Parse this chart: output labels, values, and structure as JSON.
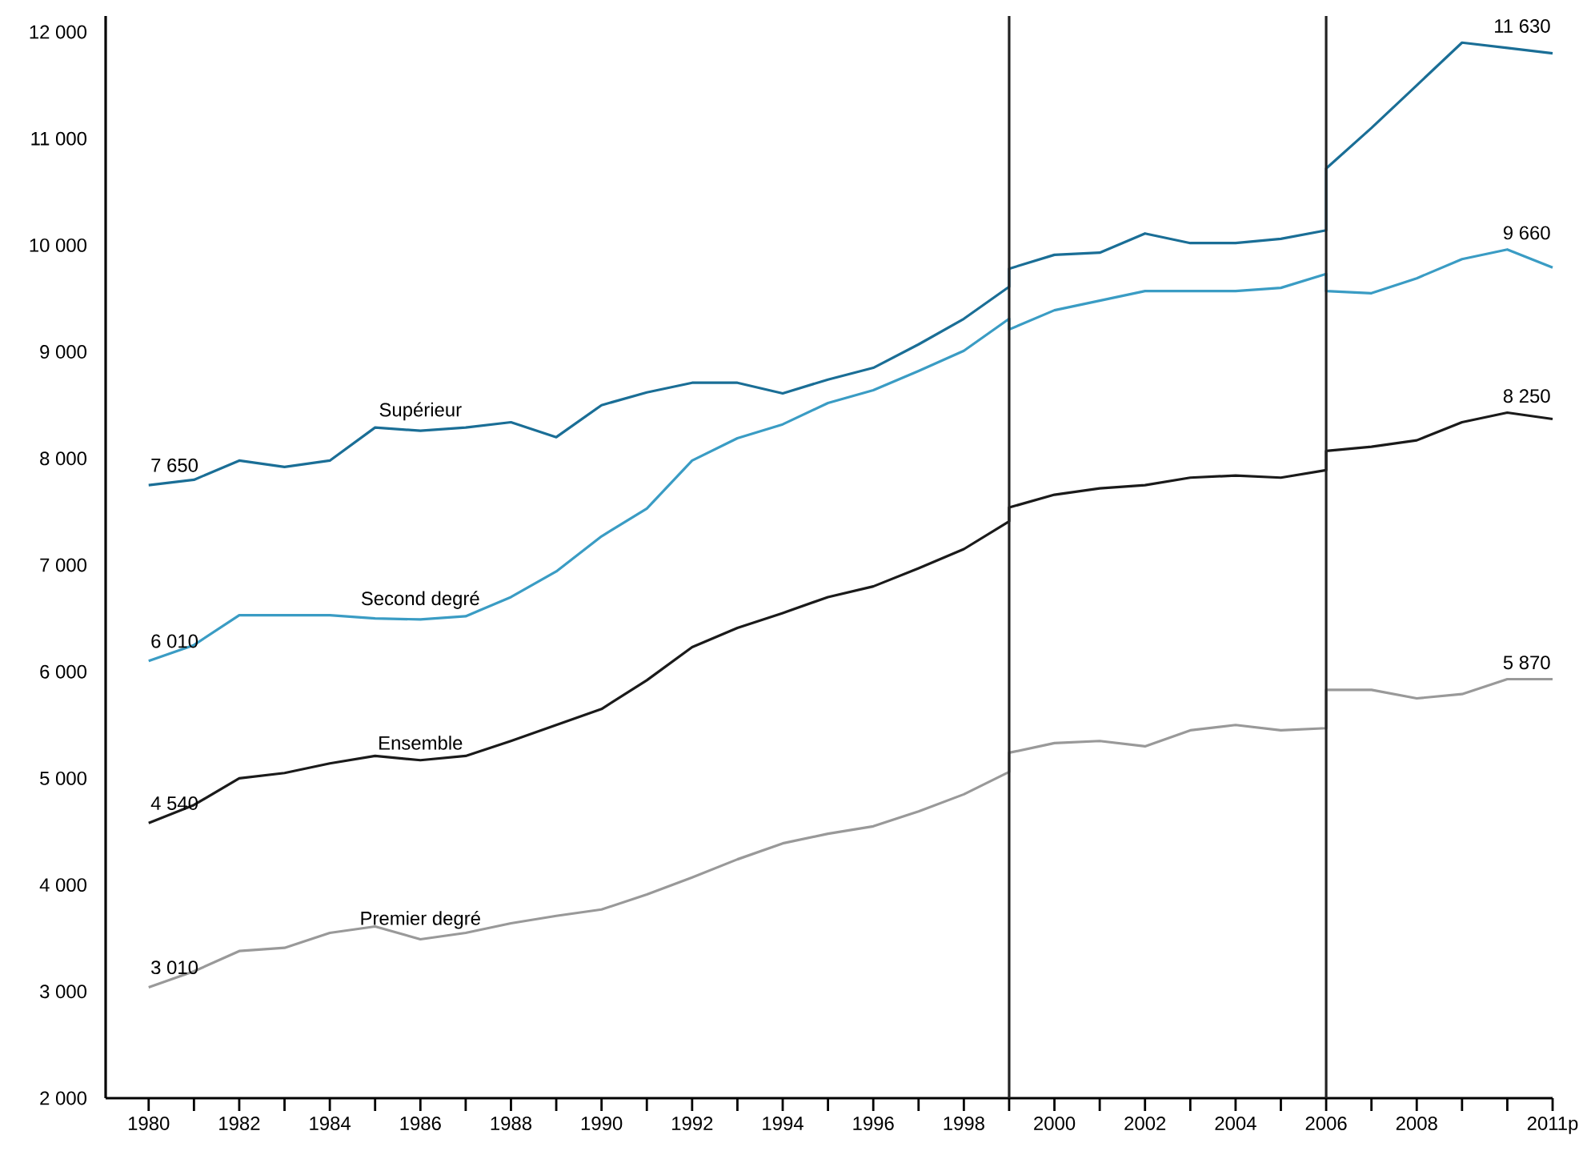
{
  "chart_data": {
    "type": "line",
    "xlim": [
      1979.05,
      2011
    ],
    "ylim": [
      2000,
      12150
    ],
    "xticks": [
      {
        "value": 1980,
        "label": "1980"
      },
      {
        "value": 1981,
        "label": null
      },
      {
        "value": 1982,
        "label": "1982"
      },
      {
        "value": 1983,
        "label": null
      },
      {
        "value": 1984,
        "label": "1984"
      },
      {
        "value": 1985,
        "label": null
      },
      {
        "value": 1986,
        "label": "1986"
      },
      {
        "value": 1987,
        "label": null
      },
      {
        "value": 1988,
        "label": "1988"
      },
      {
        "value": 1989,
        "label": null
      },
      {
        "value": 1990,
        "label": "1990"
      },
      {
        "value": 1991,
        "label": null
      },
      {
        "value": 1992,
        "label": "1992"
      },
      {
        "value": 1993,
        "label": null
      },
      {
        "value": 1994,
        "label": "1994"
      },
      {
        "value": 1995,
        "label": null
      },
      {
        "value": 1996,
        "label": "1996"
      },
      {
        "value": 1997,
        "label": null
      },
      {
        "value": 1998,
        "label": "1998"
      },
      {
        "value": 1999,
        "label": null
      },
      {
        "value": 2000,
        "label": "2000"
      },
      {
        "value": 2001,
        "label": null
      },
      {
        "value": 2002,
        "label": "2002"
      },
      {
        "value": 2003,
        "label": null
      },
      {
        "value": 2004,
        "label": "2004"
      },
      {
        "value": 2005,
        "label": null
      },
      {
        "value": 2006,
        "label": "2006"
      },
      {
        "value": 2007,
        "label": null
      },
      {
        "value": 2008,
        "label": "2008"
      },
      {
        "value": 2009,
        "label": null
      },
      {
        "value": 2010,
        "label": null
      },
      {
        "value": 2011,
        "label": "2011p"
      }
    ],
    "yticks": [
      {
        "value": 2000,
        "label": "2 000"
      },
      {
        "value": 3000,
        "label": "3 000"
      },
      {
        "value": 4000,
        "label": "4 000"
      },
      {
        "value": 5000,
        "label": "5 000"
      },
      {
        "value": 6000,
        "label": "6 000"
      },
      {
        "value": 7000,
        "label": "7 000"
      },
      {
        "value": 8000,
        "label": "8 000"
      },
      {
        "value": 9000,
        "label": "9 000"
      },
      {
        "value": 10000,
        "label": "10 000"
      },
      {
        "value": 11000,
        "label": "11 000"
      },
      {
        "value": 12000,
        "label": "12 000"
      }
    ],
    "line_style": "solid",
    "series": [
      {
        "name": "Supérieur",
        "color": "#1a6e96",
        "x": [
          1980,
          1981,
          1982,
          1983,
          1984,
          1985,
          1986,
          1987,
          1988,
          1989,
          1990,
          1991,
          1992,
          1993,
          1994,
          1995,
          1996,
          1997,
          1998,
          1999,
          1999,
          2000,
          2001,
          2002,
          2003,
          2004,
          2005,
          2006,
          2006,
          2007,
          2008,
          2009,
          2010,
          2011
        ],
        "values": [
          7750,
          7800,
          7980,
          7920,
          7980,
          8290,
          8260,
          8290,
          8340,
          8200,
          8500,
          8620,
          8710,
          8710,
          8610,
          8740,
          8850,
          9070,
          9310,
          9610,
          9780,
          9910,
          9930,
          10110,
          10020,
          10020,
          10060,
          10140,
          10720,
          11100,
          11500,
          11900,
          11850,
          11800
        ]
      },
      {
        "name": "Second degré",
        "color": "#3a9cc4",
        "x": [
          1980,
          1981,
          1982,
          1983,
          1984,
          1985,
          1986,
          1987,
          1988,
          1989,
          1990,
          1991,
          1992,
          1993,
          1994,
          1995,
          1996,
          1997,
          1998,
          1999,
          1999,
          2000,
          2001,
          2002,
          2003,
          2004,
          2005,
          2006,
          2006,
          2007,
          2008,
          2009,
          2010,
          2011
        ],
        "values": [
          6100,
          6250,
          6530,
          6530,
          6530,
          6500,
          6490,
          6520,
          6700,
          6940,
          7270,
          7530,
          7980,
          8190,
          8320,
          8520,
          8640,
          8820,
          9010,
          9310,
          9210,
          9390,
          9480,
          9570,
          9570,
          9570,
          9600,
          9730,
          9570,
          9550,
          9690,
          9870,
          9960,
          9790
        ]
      },
      {
        "name": "Ensemble",
        "color": "#1a1a1a",
        "x": [
          1980,
          1981,
          1982,
          1983,
          1984,
          1985,
          1986,
          1987,
          1988,
          1989,
          1990,
          1991,
          1992,
          1993,
          1994,
          1995,
          1996,
          1997,
          1998,
          1999,
          1999,
          2000,
          2001,
          2002,
          2003,
          2004,
          2005,
          2006,
          2006,
          2007,
          2008,
          2009,
          2010,
          2011
        ],
        "values": [
          4580,
          4750,
          5000,
          5050,
          5140,
          5210,
          5170,
          5210,
          5350,
          5500,
          5650,
          5920,
          6230,
          6410,
          6550,
          6700,
          6800,
          6970,
          7150,
          7410,
          7540,
          7660,
          7720,
          7750,
          7820,
          7840,
          7820,
          7890,
          8070,
          8110,
          8170,
          8340,
          8430,
          8370
        ]
      },
      {
        "name": "Premier degré",
        "color": "#999999",
        "x": [
          1980,
          1981,
          1982,
          1983,
          1984,
          1985,
          1986,
          1987,
          1988,
          1989,
          1990,
          1991,
          1992,
          1993,
          1994,
          1995,
          1996,
          1997,
          1998,
          1999,
          1999,
          2000,
          2001,
          2002,
          2003,
          2004,
          2005,
          2006,
          2006,
          2007,
          2008,
          2009,
          2010,
          2011
        ],
        "values": [
          3040,
          3190,
          3380,
          3410,
          3550,
          3610,
          3490,
          3550,
          3640,
          3710,
          3770,
          3910,
          4070,
          4240,
          4390,
          4480,
          4550,
          4690,
          4850,
          5060,
          5240,
          5330,
          5350,
          5300,
          5450,
          5500,
          5450,
          5470,
          5830,
          5830,
          5750,
          5790,
          5930,
          5930
        ]
      }
    ],
    "ref_lines": [
      {
        "axis": "x",
        "value": 1999,
        "color": "#222222"
      },
      {
        "axis": "x",
        "value": 2006,
        "color": "#222222"
      }
    ],
    "annotations": [
      "7 650",
      "6 010",
      "4 540",
      "3 010",
      "11 630",
      "9 660",
      "8 250",
      "5 870"
    ]
  }
}
